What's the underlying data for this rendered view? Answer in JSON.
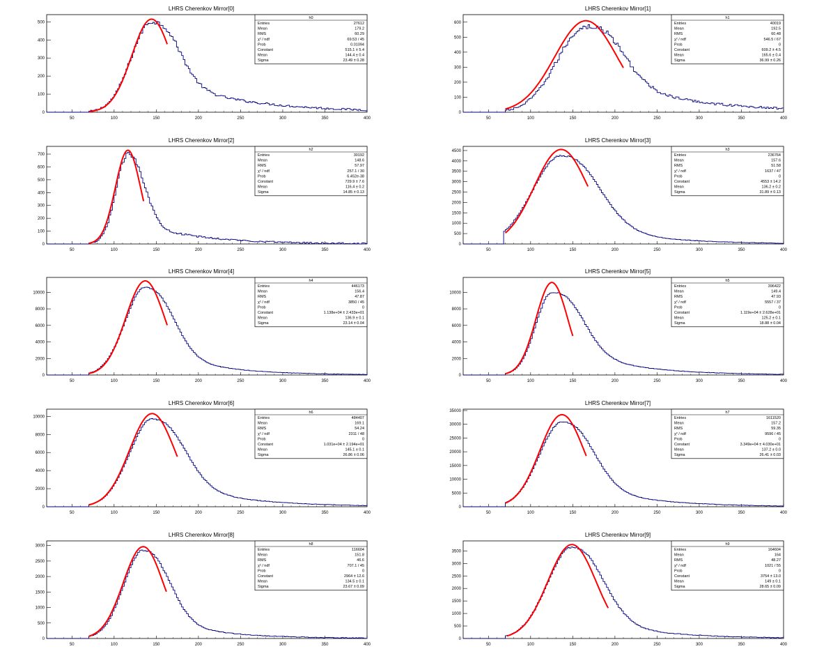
{
  "chart_data": [
    {
      "type": "histogram",
      "title": "LHRS Cherenkov Mirror[0]",
      "xlim": [
        20,
        400
      ],
      "ylim": [
        0,
        540
      ],
      "xticks": [
        50,
        100,
        150,
        200,
        250,
        300,
        350,
        400
      ],
      "yticks": [
        0,
        100,
        200,
        300,
        400,
        500
      ],
      "hist_shape": {
        "mean": 144.4,
        "sigma_left": 24,
        "sigma_right": 26,
        "peak": 500,
        "tail_amp": 160,
        "tail_decay": 90,
        "start": 70,
        "noise": 12
      },
      "fit": {
        "color": "#ff0000",
        "constant": 515.1,
        "mean": 144.4,
        "sigma": 23.49,
        "range": [
          70,
          163
        ]
      },
      "stats": {
        "name": "h0",
        "rows": [
          [
            "Entries",
            "27612"
          ],
          [
            "Mean",
            "179.2"
          ],
          [
            "RMS",
            "60.29"
          ],
          [
            "χ² / ndf",
            "69.53 / 45"
          ],
          [
            "Prob",
            "0.01094"
          ],
          [
            "Constant",
            "515.1 ± 5.4"
          ],
          [
            "Mean",
            "144.4 ± 0.4"
          ],
          [
            "Sigma",
            "23.49 ± 0.28"
          ]
        ]
      }
    },
    {
      "type": "histogram",
      "title": "LHRS Cherenkov Mirror[1]",
      "xlim": [
        20,
        400
      ],
      "ylim": [
        0,
        650
      ],
      "xticks": [
        50,
        100,
        150,
        200,
        250,
        300,
        350,
        400
      ],
      "yticks": [
        0,
        100,
        200,
        300,
        400,
        500,
        600
      ],
      "hist_shape": {
        "mean": 165.6,
        "sigma_left": 34,
        "sigma_right": 34,
        "peak": 570,
        "tail_amp": 200,
        "tail_decay": 95,
        "start": 70,
        "noise": 16
      },
      "fit": {
        "color": "#ff0000",
        "constant": 609.2,
        "mean": 165.6,
        "sigma": 36.99,
        "range": [
          70,
          210
        ]
      },
      "stats": {
        "name": "h1",
        "rows": [
          [
            "Entries",
            "40019"
          ],
          [
            "Mean",
            "192.5"
          ],
          [
            "RMS",
            "60.48"
          ],
          [
            "χ² / ndf",
            "546.5 / 67"
          ],
          [
            "Prob",
            "0"
          ],
          [
            "Constant",
            "609.2 ± 4.5"
          ],
          [
            "Mean",
            "165.6 ± 0.4"
          ],
          [
            "Sigma",
            "36.99 ± 0.26"
          ]
        ]
      }
    },
    {
      "type": "histogram",
      "title": "LHRS Cherenkov Mirror[2]",
      "xlim": [
        20,
        400
      ],
      "ylim": [
        0,
        760
      ],
      "xticks": [
        50,
        100,
        150,
        200,
        250,
        300,
        350,
        400
      ],
      "yticks": [
        0,
        100,
        200,
        300,
        400,
        500,
        600,
        700
      ],
      "hist_shape": {
        "mean": 116.4,
        "sigma_left": 14,
        "sigma_right": 17,
        "peak": 700,
        "tail_amp": 150,
        "tail_decay": 70,
        "start": 70,
        "noise": 14
      },
      "fit": {
        "color": "#ff0000",
        "constant": 729.9,
        "mean": 116.4,
        "sigma": 14.85,
        "range": [
          70,
          135
        ]
      },
      "stats": {
        "name": "h2",
        "rows": [
          [
            "Entries",
            "30192"
          ],
          [
            "Mean",
            "148.6"
          ],
          [
            "RMS",
            "57.97"
          ],
          [
            "χ² / ndf",
            "257.1 / 30"
          ],
          [
            "Prob",
            "6.452e-38"
          ],
          [
            "Constant",
            "729.9 ± 7.6"
          ],
          [
            "Mean",
            "116.4 ± 0.2"
          ],
          [
            "Sigma",
            "14.85 ± 0.13"
          ]
        ]
      }
    },
    {
      "type": "histogram",
      "title": "LHRS Cherenkov Mirror[3]",
      "xlim": [
        20,
        400
      ],
      "ylim": [
        0,
        4700
      ],
      "xticks": [
        50,
        100,
        150,
        200,
        250,
        300,
        350,
        400
      ],
      "yticks": [
        0,
        500,
        1000,
        1500,
        2000,
        2500,
        3000,
        3500,
        4000,
        4500
      ],
      "hist_shape": {
        "mean": 136.2,
        "sigma_left": 34,
        "sigma_right": 38,
        "peak": 4250,
        "tail_amp": 900,
        "tail_decay": 70,
        "start": 68,
        "noise": 30
      },
      "fit": {
        "color": "#ff0000",
        "constant": 4553,
        "mean": 136.2,
        "sigma": 31.89,
        "range": [
          70,
          168
        ]
      },
      "stats": {
        "name": "h3",
        "rows": [
          [
            "Entries",
            "236764"
          ],
          [
            "Mean",
            "157.6"
          ],
          [
            "RMS",
            "51.58"
          ],
          [
            "χ² / ndf",
            "1637 / 47"
          ],
          [
            "Prob",
            "0"
          ],
          [
            "Constant",
            "4553 ± 14.2"
          ],
          [
            "Mean",
            "136.2 ± 0.2"
          ],
          [
            "Sigma",
            "31.89 ± 0.13"
          ]
        ]
      }
    },
    {
      "type": "histogram",
      "title": "LHRS Cherenkov Mirror[4]",
      "xlim": [
        20,
        400
      ],
      "ylim": [
        0,
        11800
      ],
      "xticks": [
        50,
        100,
        150,
        200,
        250,
        300,
        350,
        400
      ],
      "yticks": [
        0,
        2000,
        4000,
        6000,
        8000,
        10000
      ],
      "hist_shape": {
        "mean": 136.9,
        "sigma_left": 24,
        "sigma_right": 28,
        "peak": 10600,
        "tail_amp": 2400,
        "tail_decay": 65,
        "start": 70,
        "noise": 60
      },
      "fit": {
        "color": "#ff0000",
        "constant": 11380,
        "mean": 136.9,
        "sigma": 23.14,
        "range": [
          70,
          163
        ]
      },
      "stats": {
        "name": "h4",
        "rows": [
          [
            "Entries",
            "446173"
          ],
          [
            "Mean",
            "156.4"
          ],
          [
            "RMS",
            "47.87"
          ],
          [
            "χ² / ndf",
            "3850 / 45"
          ],
          [
            "Prob",
            "0"
          ],
          [
            "Constant",
            "1.138e+04 ± 2.433e+01"
          ],
          [
            "Mean",
            "136.9 ± 0.1"
          ],
          [
            "Sigma",
            "23.14 ± 0.04"
          ]
        ]
      }
    },
    {
      "type": "histogram",
      "title": "LHRS Cherenkov Mirror[5]",
      "xlim": [
        20,
        400
      ],
      "ylim": [
        0,
        11800
      ],
      "xticks": [
        50,
        100,
        150,
        200,
        250,
        300,
        350,
        400
      ],
      "yticks": [
        0,
        2000,
        4000,
        6000,
        8000,
        10000
      ],
      "hist_shape": {
        "mean": 125.2,
        "sigma_left": 19,
        "sigma_right": 30,
        "peak": 10000,
        "tail_amp": 2800,
        "tail_decay": 70,
        "start": 70,
        "noise": 60
      },
      "fit": {
        "color": "#ff0000",
        "constant": 11190,
        "mean": 125.2,
        "sigma": 18.88,
        "range": [
          70,
          150
        ]
      },
      "stats": {
        "name": "h5",
        "rows": [
          [
            "Entries",
            "396422"
          ],
          [
            "Mean",
            "149.4"
          ],
          [
            "RMS",
            "47.93"
          ],
          [
            "χ² / ndf",
            "5557 / 37"
          ],
          [
            "Prob",
            "0"
          ],
          [
            "Constant",
            "1.119e+04 ± 2.628e+01"
          ],
          [
            "Mean",
            "125.2 ± 0.1"
          ],
          [
            "Sigma",
            "18.88 ± 0.04"
          ]
        ]
      }
    },
    {
      "type": "histogram",
      "title": "LHRS Cherenkov Mirror[6]",
      "xlim": [
        20,
        400
      ],
      "ylim": [
        0,
        10800
      ],
      "xticks": [
        50,
        100,
        150,
        200,
        250,
        300,
        350,
        400
      ],
      "yticks": [
        0,
        2000,
        4000,
        6000,
        8000,
        10000
      ],
      "hist_shape": {
        "mean": 145.1,
        "sigma_left": 27,
        "sigma_right": 32,
        "peak": 9700,
        "tail_amp": 2400,
        "tail_decay": 75,
        "start": 70,
        "noise": 60
      },
      "fit": {
        "color": "#ff0000",
        "constant": 10310,
        "mean": 145.1,
        "sigma": 26.86,
        "range": [
          70,
          175
        ]
      },
      "stats": {
        "name": "h6",
        "rows": [
          [
            "Entries",
            "484407"
          ],
          [
            "Mean",
            "169.1"
          ],
          [
            "RMS",
            "54.24"
          ],
          [
            "χ² / ndf",
            "2311 / 48"
          ],
          [
            "Prob",
            "0"
          ],
          [
            "Constant",
            "1.031e+04 ± 2.194e+01"
          ],
          [
            "Mean",
            "145.1 ± 0.1"
          ],
          [
            "Sigma",
            "26.86 ± 0.06"
          ]
        ]
      }
    },
    {
      "type": "histogram",
      "title": "LHRS Cherenkov Mirror[7]",
      "xlim": [
        20,
        400
      ],
      "ylim": [
        0,
        35500
      ],
      "xticks": [
        50,
        100,
        150,
        200,
        250,
        300,
        350,
        400
      ],
      "yticks": [
        0,
        5000,
        10000,
        15000,
        20000,
        25000,
        30000,
        35000
      ],
      "hist_shape": {
        "mean": 137.2,
        "sigma_left": 27,
        "sigma_right": 31,
        "peak": 30800,
        "tail_amp": 7500,
        "tail_decay": 70,
        "start": 70,
        "noise": 180
      },
      "fit": {
        "color": "#ff0000",
        "constant": 33490,
        "mean": 137.2,
        "sigma": 26.41,
        "range": [
          70,
          166
        ]
      },
      "stats": {
        "name": "h7",
        "rows": [
          [
            "Entries",
            "1611520"
          ],
          [
            "Mean",
            "157.2"
          ],
          [
            "RMS",
            "59.35"
          ],
          [
            "χ² / ndf",
            "9596 / 45"
          ],
          [
            "Prob",
            "0"
          ],
          [
            "Constant",
            "3.349e+04 ± 4.030e+01"
          ],
          [
            "Mean",
            "137.2 ± 0.0"
          ],
          [
            "Sigma",
            "26.41 ± 0.03"
          ]
        ]
      }
    },
    {
      "type": "histogram",
      "title": "LHRS Cherenkov Mirror[8]",
      "xlim": [
        20,
        400
      ],
      "ylim": [
        0,
        3150
      ],
      "xticks": [
        50,
        100,
        150,
        200,
        250,
        300,
        350,
        400
      ],
      "yticks": [
        0,
        500,
        1000,
        1500,
        2000,
        2500,
        3000
      ],
      "hist_shape": {
        "mean": 134.5,
        "sigma_left": 23,
        "sigma_right": 27,
        "peak": 2850,
        "tail_amp": 550,
        "tail_decay": 65,
        "start": 70,
        "noise": 25
      },
      "fit": {
        "color": "#ff0000",
        "constant": 2964,
        "mean": 134.5,
        "sigma": 23.67,
        "range": [
          70,
          162
        ]
      },
      "stats": {
        "name": "h8",
        "rows": [
          [
            "Entries",
            "116604"
          ],
          [
            "Mean",
            "151.8"
          ],
          [
            "RMS",
            "46.6"
          ],
          [
            "χ² / ndf",
            "707.1 / 45"
          ],
          [
            "Prob",
            "0"
          ],
          [
            "Constant",
            "2964 ± 12.6"
          ],
          [
            "Mean",
            "134.5 ± 0.1"
          ],
          [
            "Sigma",
            "23.67 ± 0.09"
          ]
        ]
      }
    },
    {
      "type": "histogram",
      "title": "LHRS Cherenkov Mirror[9]",
      "xlim": [
        20,
        400
      ],
      "ylim": [
        0,
        3900
      ],
      "xticks": [
        50,
        100,
        150,
        200,
        250,
        300,
        350,
        400
      ],
      "yticks": [
        0,
        500,
        1000,
        1500,
        2000,
        2500,
        3000,
        3500
      ],
      "hist_shape": {
        "mean": 149,
        "sigma_left": 29,
        "sigma_right": 32,
        "peak": 3650,
        "tail_amp": 700,
        "tail_decay": 70,
        "start": 70,
        "noise": 30
      },
      "fit": {
        "color": "#ff0000",
        "constant": 3754,
        "mean": 149,
        "sigma": 28.65,
        "range": [
          72,
          192
        ]
      },
      "stats": {
        "name": "h9",
        "rows": [
          [
            "Entries",
            "164604"
          ],
          [
            "Mean",
            "164"
          ],
          [
            "RMS",
            "48.27"
          ],
          [
            "χ² / ndf",
            "1021 / 55"
          ],
          [
            "Prob",
            "0"
          ],
          [
            "Constant",
            "3754 ± 13.0"
          ],
          [
            "Mean",
            "149 ± 0.1"
          ],
          [
            "Sigma",
            "28.65 ± 0.09"
          ]
        ]
      }
    }
  ],
  "style": {
    "hist_color": "#000080",
    "fit_color": "#ff0000",
    "axis_color": "#000000"
  }
}
